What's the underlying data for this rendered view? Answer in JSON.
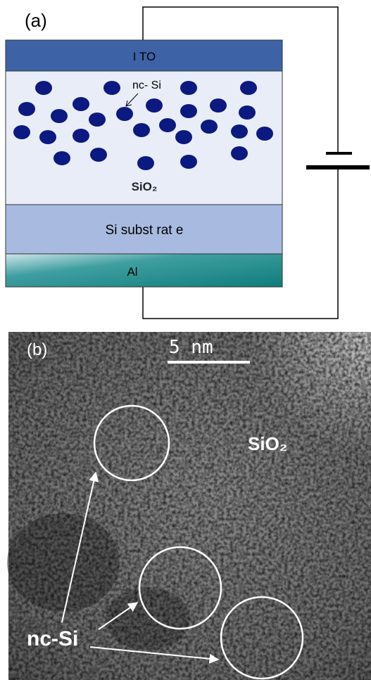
{
  "panel_a": {
    "label": "(a)",
    "layers": {
      "top": "I TO",
      "oxide": "SiO₂",
      "substrate": "Si  subst rat e",
      "bottom": "Al"
    },
    "nc_label": "nc- Si"
  },
  "panel_b": {
    "label": "(b)",
    "scale_bar": "5 nm",
    "oxide": "SiO₂",
    "nc_label": "nc-Si"
  }
}
